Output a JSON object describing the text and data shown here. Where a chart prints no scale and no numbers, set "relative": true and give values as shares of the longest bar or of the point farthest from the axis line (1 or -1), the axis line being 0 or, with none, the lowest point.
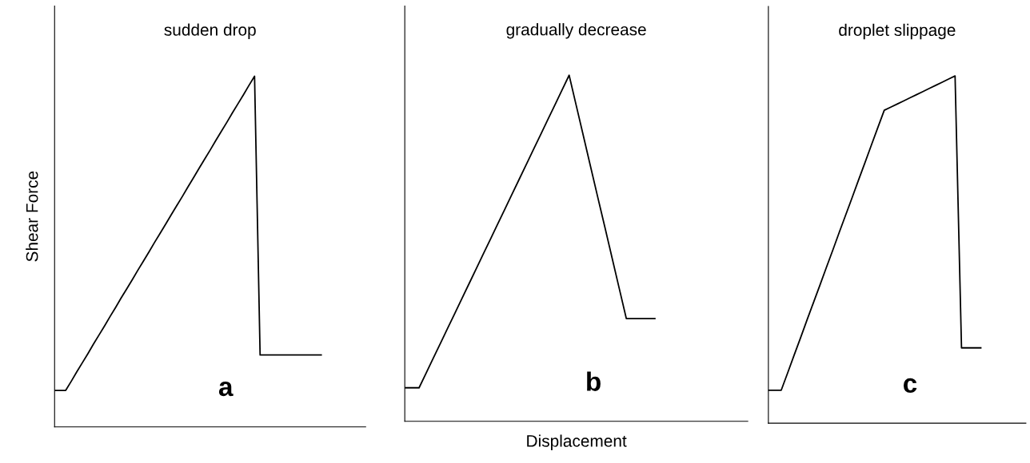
{
  "chart_data": [
    {
      "type": "line",
      "title": "sudden drop",
      "ylabel": "Shear Force",
      "relative": true,
      "annotations": [
        "a"
      ],
      "tick_labels": false,
      "marker": "none",
      "line_style": "solid",
      "categories": [
        null,
        null,
        null,
        null,
        null,
        null,
        null,
        null,
        null,
        null,
        null,
        null,
        null,
        null,
        null,
        null,
        null,
        null,
        null,
        null,
        null,
        null,
        null,
        null,
        null,
        null,
        null,
        null,
        null,
        null,
        null,
        null,
        null,
        null,
        null,
        null,
        null,
        null,
        null,
        null,
        null,
        null,
        null,
        null,
        null,
        null,
        null,
        null,
        null,
        null,
        null,
        null,
        null,
        null,
        null,
        null,
        null
      ],
      "series": [
        {
          "color": "#000000",
          "values": [
            0.104,
            0.104,
            0.104,
            0.13,
            0.157,
            0.183,
            0.209,
            0.236,
            0.262,
            0.288,
            0.315,
            0.341,
            0.368,
            0.394,
            0.42,
            0.447,
            0.473,
            0.499,
            0.526,
            0.552,
            0.578,
            0.605,
            0.631,
            0.657,
            0.684,
            0.71,
            0.737,
            0.763,
            0.789,
            0.816,
            0.842,
            0.868,
            0.895,
            0.921,
            0.947,
            0.974,
            1,
            0.205,
            0.205,
            0.205,
            0.205,
            0.205,
            0.205,
            0.205,
            0.205,
            0.205,
            0.205,
            0.205,
            0.205,
            null,
            null,
            null,
            null,
            null,
            null,
            null,
            null
          ]
        }
      ]
    },
    {
      "type": "line",
      "title": "gradually decrease",
      "xlabel": "Displacement",
      "relative": true,
      "annotations": [
        "b"
      ],
      "tick_labels": false,
      "marker": "none",
      "line_style": "solid",
      "categories": [
        null,
        null,
        null,
        null,
        null,
        null,
        null,
        null,
        null,
        null,
        null,
        null,
        null,
        null,
        null,
        null,
        null,
        null,
        null,
        null,
        null,
        null,
        null,
        null,
        null,
        null,
        null,
        null,
        null,
        null,
        null,
        null,
        null,
        null,
        null,
        null,
        null,
        null,
        null,
        null,
        null,
        null,
        null,
        null,
        null,
        null,
        null,
        null,
        null
      ],
      "series": [
        {
          "color": "#000000",
          "values": [
            0.097,
            0.097,
            0.097,
            0.14,
            0.183,
            0.226,
            0.269,
            0.312,
            0.355,
            0.398,
            0.441,
            0.484,
            0.527,
            0.57,
            0.613,
            0.656,
            0.699,
            0.742,
            0.785,
            0.828,
            0.871,
            0.914,
            0.957,
            1,
            0.912,
            0.824,
            0.736,
            0.648,
            0.561,
            0.473,
            0.385,
            0.297,
            0.297,
            0.297,
            0.297,
            0.297,
            null,
            null,
            null,
            null,
            null,
            null,
            null,
            null,
            null,
            null,
            null,
            null,
            null
          ]
        }
      ]
    },
    {
      "type": "line",
      "title": "droplet slippage",
      "relative": true,
      "annotations": [
        "c"
      ],
      "tick_labels": false,
      "marker": "none",
      "line_style": "solid",
      "categories": [
        null,
        null,
        null,
        null,
        null,
        null,
        null,
        null,
        null,
        null,
        null,
        null,
        null,
        null,
        null,
        null,
        null,
        null,
        null,
        null,
        null,
        null,
        null,
        null,
        null,
        null,
        null,
        null,
        null,
        null,
        null,
        null,
        null,
        null,
        null,
        null,
        null,
        null,
        null,
        null,
        null
      ],
      "series": [
        {
          "color": "#000000",
          "values": [
            0.095,
            0.095,
            0.095,
            0.145,
            0.196,
            0.246,
            0.297,
            0.347,
            0.397,
            0.448,
            0.498,
            0.549,
            0.599,
            0.649,
            0.7,
            0.75,
            0.801,
            0.851,
            0.901,
            0.91,
            0.919,
            0.928,
            0.937,
            0.946,
            0.955,
            0.964,
            0.973,
            0.982,
            0.991,
            1,
            0.217,
            0.217,
            0.217,
            0.217,
            null,
            null,
            null,
            null,
            null,
            null,
            null
          ]
        }
      ]
    }
  ]
}
